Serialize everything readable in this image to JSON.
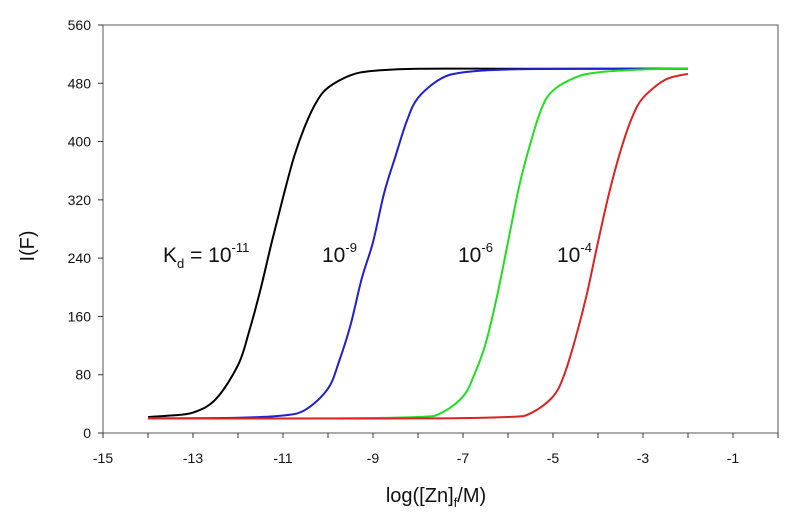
{
  "chart_data": {
    "type": "line",
    "title": "",
    "xlabel": "log([Zn]f/M)",
    "ylabel": "I(F)",
    "xlim": [
      -15,
      0
    ],
    "ylim": [
      0,
      560
    ],
    "x_ticks": [
      "-15",
      "-13",
      "-11",
      "-9",
      "-7",
      "-5",
      "-3",
      "-1"
    ],
    "y_ticks": [
      "0",
      "80",
      "160",
      "240",
      "320",
      "400",
      "480",
      "560"
    ],
    "grid": false,
    "legend": "none",
    "series": [
      {
        "logKd": -11,
        "color": "#000000",
        "label": {
          "prefix": "K",
          "sub": "d",
          "mid": " = 10",
          "sup": "-11"
        },
        "x": [
          -14.0,
          -13.5,
          -13.0,
          -12.5,
          -12.0,
          -11.75,
          -11.5,
          -11.25,
          -11.0,
          -10.75,
          -10.5,
          -10.25,
          -10.0,
          -9.5,
          -9.0,
          -8.0,
          -6.0,
          -4.0,
          -2.0
        ],
        "y": [
          22,
          24,
          28,
          46,
          93,
          140,
          197,
          262,
          323,
          380,
          423,
          455,
          474,
          491,
          497,
          500,
          500,
          500,
          500
        ]
      },
      {
        "logKd": -9,
        "color": "#1f1fd0",
        "label": {
          "prefix": "",
          "sub": "",
          "mid": "10",
          "sup": "-9"
        },
        "x": [
          -14.0,
          -12.0,
          -11.0,
          -10.5,
          -10.0,
          -9.75,
          -9.5,
          -9.25,
          -9.0,
          -8.75,
          -8.5,
          -8.25,
          -8.0,
          -7.5,
          -7.0,
          -6.0,
          -4.0,
          -2.0
        ],
        "y": [
          20,
          21,
          24,
          32,
          61,
          99,
          148,
          212,
          262,
          330,
          380,
          428,
          460,
          486,
          495,
          499,
          500,
          500
        ]
      },
      {
        "logKd": -6,
        "color": "#22dd22",
        "label": {
          "prefix": "",
          "sub": "",
          "mid": "10",
          "sup": "-6"
        },
        "x": [
          -14.0,
          -10.0,
          -8.0,
          -7.5,
          -7.0,
          -6.75,
          -6.5,
          -6.25,
          -6.0,
          -5.75,
          -5.5,
          -5.25,
          -5.0,
          -4.5,
          -4.0,
          -3.0,
          -2.0
        ],
        "y": [
          20,
          20,
          22,
          27,
          50,
          80,
          122,
          186,
          262,
          339,
          398,
          446,
          470,
          488,
          495,
          499,
          500
        ]
      },
      {
        "logKd": -4,
        "color": "#dd2222",
        "label": {
          "prefix": "",
          "sub": "",
          "mid": "10",
          "sup": "-4"
        },
        "x": [
          -14.0,
          -8.0,
          -6.0,
          -5.5,
          -5.0,
          -4.75,
          -4.5,
          -4.25,
          -4.0,
          -3.75,
          -3.5,
          -3.25,
          -3.0,
          -2.5,
          -2.0
        ],
        "y": [
          20,
          20,
          22,
          27,
          50,
          80,
          130,
          190,
          262,
          330,
          387,
          432,
          460,
          485,
          493
        ]
      }
    ]
  }
}
